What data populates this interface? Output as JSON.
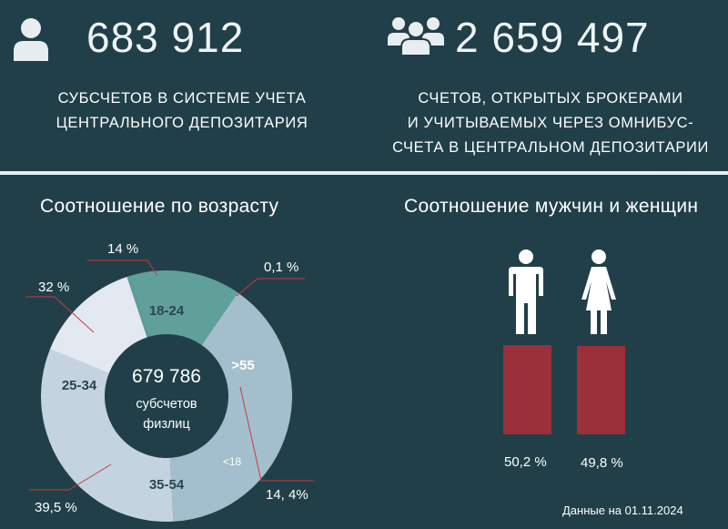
{
  "top": {
    "left": {
      "icon": "person-icon",
      "number": "683 912",
      "caption_lines": [
        "СУБСЧЕТОВ В СИСТЕМЕ УЧЕТА",
        "ЦЕНТРАЛЬНОГО ДЕПОЗИТАРИЯ"
      ]
    },
    "right": {
      "icon": "group-icon",
      "number": "2 659 497",
      "caption_lines": [
        "СЧЕТОВ, ОТКРЫТЫХ БРОКЕРАМИ",
        "И УЧИТЫВАЕМЫХ ЧЕРЕЗ ОМНИБУС-",
        "СЧЕТА В ЦЕНТРАЛЬНОМ ДЕПОЗИТАРИИ"
      ]
    }
  },
  "colors": {
    "background": "#213f48",
    "slice_18_24": "#e4e8f1",
    "slice_under18": "#5fa09a",
    "slice_over55": "#5fa09a",
    "slice_35_54": "#a3bfcd",
    "slice_25_34": "#c3d4e0",
    "leader": "#c93a3a",
    "bar": "#9b2f3a"
  },
  "chart_data": [
    {
      "type": "pie",
      "title": "Соотношение по возрасту",
      "center_value": "679 786",
      "center_label_lines": [
        "субсчетов",
        "физлиц"
      ],
      "slices": [
        {
          "label": "18-24",
          "value": 14,
          "value_label": "14 %"
        },
        {
          "label": "<18",
          "value": 0.1,
          "value_label": "0,1 %"
        },
        {
          "label": ">55",
          "value": 14.4,
          "value_label": "14, 4%"
        },
        {
          "label": "35-54",
          "value": 39.5,
          "value_label": "39,5 %"
        },
        {
          "label": "25-34",
          "value": 32,
          "value_label": "32 %"
        }
      ]
    },
    {
      "type": "bar",
      "title": "Соотношение мужчин и женщин",
      "categories": [
        "male-icon",
        "female-icon"
      ],
      "values": [
        50.2,
        49.8
      ],
      "value_labels": [
        "50,2 %",
        "49,8 %"
      ]
    }
  ],
  "footnote": "Данные на 01.11.2024"
}
